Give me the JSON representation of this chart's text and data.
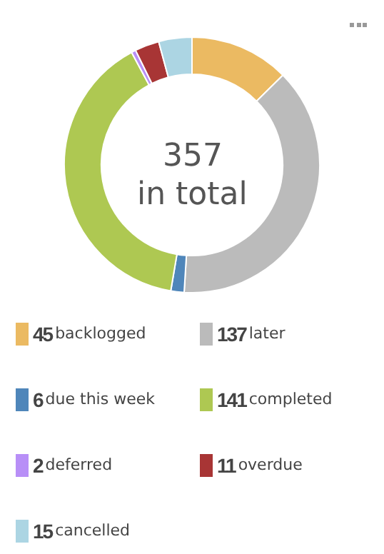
{
  "chart_data": {
    "type": "donut",
    "categories": [
      "backlogged",
      "later",
      "due this week",
      "completed",
      "deferred",
      "overdue",
      "cancelled"
    ],
    "values": [
      45,
      137,
      6,
      141,
      2,
      11,
      15
    ],
    "colors": [
      "#ebba62",
      "#bbbbbb",
      "#4f86ba",
      "#aec852",
      "#b88ff7",
      "#a83535",
      "#acd5e3"
    ],
    "annotations": [
      "357",
      "in total"
    ],
    "data_labels": true,
    "legend": "bottom"
  }
}
